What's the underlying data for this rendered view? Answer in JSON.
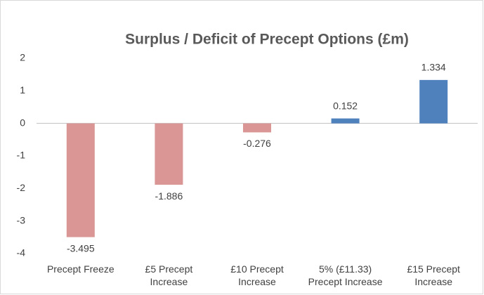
{
  "chart_data": {
    "type": "bar",
    "title": "Surplus / Deficit of Precept Options (£m)",
    "categories": [
      "Precept Freeze",
      "£5 Precept Increase",
      "£10 Precept Increase",
      "5% (£11.33) Precept Increase",
      "£15 Precept Increase"
    ],
    "values": [
      -3.495,
      -1.886,
      -0.276,
      0.152,
      1.334
    ],
    "colors": [
      "#d99694",
      "#d99694",
      "#d99694",
      "#4f81bd",
      "#4f81bd"
    ],
    "ylim": [
      -4,
      2
    ],
    "yticks": [
      -4,
      -3,
      -2,
      -1,
      0,
      1,
      2
    ],
    "grid": false
  }
}
